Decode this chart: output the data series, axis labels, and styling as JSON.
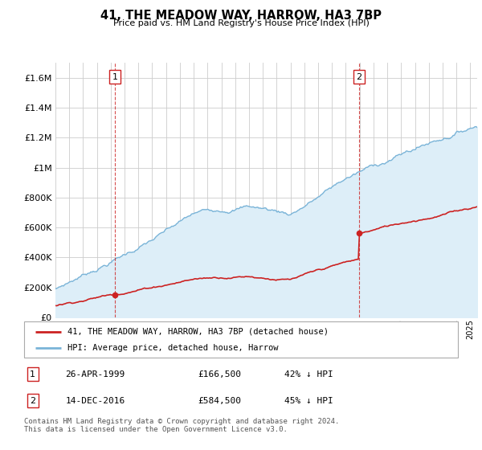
{
  "title": "41, THE MEADOW WAY, HARROW, HA3 7BP",
  "subtitle": "Price paid vs. HM Land Registry's House Price Index (HPI)",
  "legend_line1": "41, THE MEADOW WAY, HARROW, HA3 7BP (detached house)",
  "legend_line2": "HPI: Average price, detached house, Harrow",
  "transaction1_date": "26-APR-1999",
  "transaction1_price": "£166,500",
  "transaction1_hpi": "42% ↓ HPI",
  "transaction2_date": "14-DEC-2016",
  "transaction2_price": "£584,500",
  "transaction2_hpi": "45% ↓ HPI",
  "footer": "Contains HM Land Registry data © Crown copyright and database right 2024.\nThis data is licensed under the Open Government Licence v3.0.",
  "hpi_color": "#7ab4d8",
  "hpi_fill_color": "#ddeef8",
  "price_color": "#cc2222",
  "vline_color": "#cc2222",
  "ylim": [
    0,
    1700000
  ],
  "yticks": [
    0,
    200000,
    400000,
    600000,
    800000,
    1000000,
    1200000,
    1400000,
    1600000
  ],
  "xlim_start": 1995.0,
  "xlim_end": 2025.5,
  "background_color": "#ffffff",
  "grid_color": "#cccccc"
}
